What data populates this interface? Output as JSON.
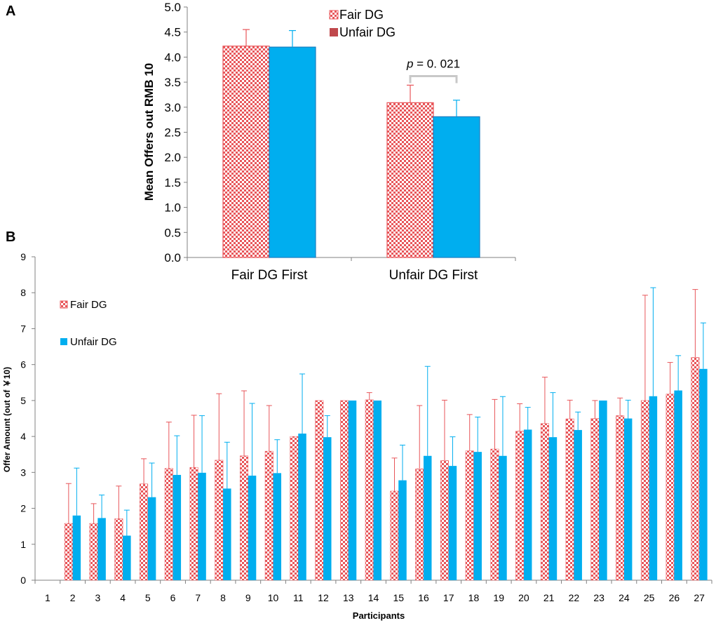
{
  "panel_labels": {
    "a": "A",
    "b": "B"
  },
  "colors": {
    "fair": "#e8565a",
    "fair_light": "#ffffff",
    "unfair": "#00aeef",
    "unfair_stroke": "#1a7fc0",
    "bracket": "#c8c8c8"
  },
  "chart_data": [
    {
      "type": "bar",
      "title": "",
      "xlabel": "",
      "ylabel": "Mean Offers out RMB 10",
      "ylim": [
        0,
        5
      ],
      "yticks": [
        "0.0",
        "0.5",
        "1.0",
        "1.5",
        "2.0",
        "2.5",
        "3.0",
        "3.5",
        "4.0",
        "4.5",
        "5.0"
      ],
      "categories": [
        "Fair DG First",
        "Unfair DG First"
      ],
      "series": [
        {
          "name": "Fair DG",
          "values": [
            4.22,
            3.09
          ],
          "errors": [
            0.33,
            0.35
          ]
        },
        {
          "name": "Unfair DG",
          "values": [
            4.2,
            2.81
          ],
          "errors": [
            0.33,
            0.33
          ]
        }
      ],
      "legend": [
        "Fair DG",
        "Unfair DG"
      ],
      "legend_position": "top",
      "annotation": {
        "italic": "p",
        "text": " = 0. 021",
        "category": "Unfair DG First"
      }
    },
    {
      "type": "bar",
      "title": "",
      "xlabel": "Participants",
      "ylabel": "Offer Amount (out of ￥10)",
      "ylim": [
        0,
        9
      ],
      "yticks": [
        "0",
        "1",
        "2",
        "3",
        "4",
        "5",
        "6",
        "7",
        "8",
        "9"
      ],
      "categories": [
        "1",
        "2",
        "3",
        "4",
        "5",
        "6",
        "7",
        "8",
        "9",
        "10",
        "11",
        "12",
        "13",
        "14",
        "15",
        "16",
        "17",
        "18",
        "19",
        "20",
        "21",
        "22",
        "23",
        "24",
        "25",
        "26",
        "27"
      ],
      "series": [
        {
          "name": "Fair DG",
          "values": [
            0,
            1.58,
            1.58,
            1.71,
            2.68,
            3.11,
            3.14,
            3.34,
            3.46,
            3.59,
            4.0,
            5.0,
            5.0,
            5.02,
            2.48,
            3.1,
            3.33,
            3.6,
            3.65,
            4.15,
            4.36,
            4.49,
            4.5,
            4.58,
            5.0,
            5.18,
            6.2
          ],
          "errors": [
            0,
            1.11,
            0.55,
            0.91,
            0.7,
            1.29,
            1.45,
            1.85,
            1.81,
            1.27,
            0,
            0,
            0,
            0.2,
            0.92,
            1.76,
            1.68,
            1.01,
            1.38,
            0.76,
            1.29,
            0.52,
            0.5,
            0.49,
            2.93,
            0.88,
            1.89
          ]
        },
        {
          "name": "Unfair DG",
          "values": [
            0,
            1.8,
            1.73,
            1.24,
            2.31,
            2.93,
            2.99,
            2.55,
            2.91,
            2.98,
            4.08,
            3.98,
            5.0,
            5.0,
            2.78,
            3.46,
            3.18,
            3.57,
            3.46,
            4.19,
            3.98,
            4.18,
            5.0,
            4.5,
            5.12,
            5.28,
            5.88
          ],
          "errors": [
            0,
            1.32,
            0.64,
            0.71,
            0.95,
            1.09,
            1.59,
            1.29,
            2.01,
            0.93,
            1.66,
            0.6,
            0,
            0,
            0.98,
            2.49,
            0.81,
            0.97,
            1.65,
            0.62,
            1.24,
            0.5,
            0,
            0.51,
            3.02,
            0.97,
            1.28
          ]
        }
      ],
      "legend": [
        "Fair DG",
        "Unfair DG"
      ],
      "legend_position": "top-left"
    }
  ]
}
